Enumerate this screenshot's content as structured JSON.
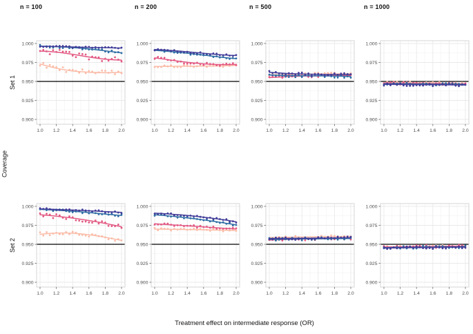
{
  "figure": {
    "xlabel": "Treatment effect on intermediate response (OR)",
    "ylabel": "Coverage"
  },
  "chart_data": {
    "type": "scatter",
    "title": "",
    "xlabel": "Treatment effect on intermediate response (OR)",
    "ylabel": "Coverage",
    "facet_col_labels": [
      "n = 100",
      "n = 200",
      "n = 500",
      "n = 1000"
    ],
    "facet_row_labels": [
      "Set 1",
      "Set 2"
    ],
    "x_ticks": [
      1.0,
      1.2,
      1.4,
      1.6,
      1.8,
      2.0
    ],
    "x_tick_labels": [
      "1.0",
      "1.2",
      "1.4",
      "1.6",
      "1.8",
      "2.0"
    ],
    "x_minor_ticks": [
      1.1,
      1.3,
      1.5,
      1.7,
      1.9
    ],
    "y_ticks": [
      1.0,
      0.975,
      0.95,
      0.925,
      0.9
    ],
    "y_tick_labels": [
      "1.000",
      "0.975",
      "0.950",
      "0.925",
      "0.900"
    ],
    "y_minor_ticks": [
      0.9875,
      0.9625,
      0.9375,
      0.9125
    ],
    "xlim": [
      1.0,
      2.0
    ],
    "ylim": [
      0.9,
      1.0
    ],
    "grid": true,
    "legend": "none",
    "reference_line_y": 0.95,
    "reference_line_color": "#000000",
    "panel_border_color": "#d4d4d4",
    "major_grid_color": "#e9e9e9",
    "minor_grid_color": "#f4f4f4",
    "series_colors": {
      "series-purple": "#423d99",
      "series-blue": "#2e6da4",
      "series-pink": "#e35983",
      "series-salmon": "#fbbca8"
    },
    "trend_x": [
      1.0,
      1.1,
      1.2,
      1.3,
      1.4,
      1.5,
      1.6,
      1.7,
      1.8,
      1.9,
      2.0
    ],
    "n_scatter_points": 26,
    "facets": [
      {
        "row": "Set 1",
        "col": "n = 100",
        "series": [
          {
            "name": "series-salmon",
            "color": "#fbbca8",
            "sd": 0.0035,
            "trend": [
              0.973,
              0.97,
              0.9674,
              0.9653,
              0.9638,
              0.9628,
              0.9621,
              0.9617,
              0.9615,
              0.9616,
              0.962
            ]
          },
          {
            "name": "series-pink",
            "color": "#e35983",
            "sd": 0.0035,
            "trend": [
              0.99,
              0.9895,
              0.9886,
              0.9873,
              0.9857,
              0.984,
              0.9822,
              0.9806,
              0.9793,
              0.9785,
              0.9781
            ]
          },
          {
            "name": "series-blue",
            "color": "#2e6da4",
            "sd": 0.0016,
            "trend": [
              0.9965,
              0.9962,
              0.9958,
              0.9953,
              0.9946,
              0.9938,
              0.9928,
              0.9916,
              0.9903,
              0.989,
              0.9876
            ]
          },
          {
            "name": "series-purple",
            "color": "#423d99",
            "sd": 0.0013,
            "trend": [
              0.9963,
              0.9961,
              0.9959,
              0.9957,
              0.9954,
              0.9951,
              0.9948,
              0.9946,
              0.9944,
              0.9942,
              0.994
            ]
          }
        ]
      },
      {
        "row": "Set 1",
        "col": "n = 200",
        "series": [
          {
            "name": "series-salmon",
            "color": "#fbbca8",
            "sd": 0.0016,
            "trend": [
              0.9698,
              0.9698,
              0.9699,
              0.97,
              0.97,
              0.9701,
              0.9702,
              0.9703,
              0.9705,
              0.9707,
              0.971
            ]
          },
          {
            "name": "series-pink",
            "color": "#e35983",
            "sd": 0.0022,
            "trend": [
              0.981,
              0.9796,
              0.9781,
              0.9766,
              0.9752,
              0.9741,
              0.9732,
              0.9726,
              0.9723,
              0.9722,
              0.9724
            ]
          },
          {
            "name": "series-blue",
            "color": "#2e6da4",
            "sd": 0.0015,
            "trend": [
              0.991,
              0.9902,
              0.9893,
              0.9883,
              0.9872,
              0.986,
              0.9847,
              0.9834,
              0.9821,
              0.981,
              0.98
            ]
          },
          {
            "name": "series-purple",
            "color": "#423d99",
            "sd": 0.0013,
            "trend": [
              0.9921,
              0.9915,
              0.9908,
              0.99,
              0.9891,
              0.9881,
              0.9871,
              0.9861,
              0.9852,
              0.9846,
              0.9843
            ]
          }
        ]
      },
      {
        "row": "Set 1",
        "col": "n = 500",
        "series": [
          {
            "name": "series-salmon",
            "color": "#fbbca8",
            "sd": 0.002,
            "trend": [
              0.9585,
              0.9588,
              0.959,
              0.9592,
              0.9594,
              0.9596,
              0.9597,
              0.9598,
              0.9599,
              0.96,
              0.96
            ]
          },
          {
            "name": "series-pink",
            "color": "#e35983",
            "sd": 0.002,
            "trend": [
              0.955,
              0.9557,
              0.9562,
              0.9567,
              0.957,
              0.9572,
              0.9574,
              0.9576,
              0.9577,
              0.9578,
              0.9579
            ]
          },
          {
            "name": "series-blue",
            "color": "#2e6da4",
            "sd": 0.002,
            "trend": [
              0.9585,
              0.9581,
              0.9578,
              0.9576,
              0.9575,
              0.9574,
              0.9573,
              0.9572,
              0.957,
              0.9568,
              0.9565
            ]
          },
          {
            "name": "series-purple",
            "color": "#423d99",
            "sd": 0.002,
            "trend": [
              0.962,
              0.9612,
              0.9606,
              0.9601,
              0.9598,
              0.9595,
              0.9593,
              0.9592,
              0.9591,
              0.959,
              0.959
            ]
          }
        ]
      },
      {
        "row": "Set 1",
        "col": "n = 1000",
        "series": [
          {
            "name": "series-salmon",
            "color": "#fbbca8",
            "sd": 0.0018,
            "trend": [
              0.9484,
              0.9483,
              0.9482,
              0.9481,
              0.948,
              0.9479,
              0.9478,
              0.9477,
              0.9475,
              0.9473,
              0.9471
            ]
          },
          {
            "name": "series-pink",
            "color": "#e35983",
            "sd": 0.0018,
            "trend": [
              0.9478,
              0.9477,
              0.9476,
              0.9475,
              0.9474,
              0.9473,
              0.9472,
              0.9471,
              0.947,
              0.9468,
              0.9466
            ]
          },
          {
            "name": "series-blue",
            "color": "#2e6da4",
            "sd": 0.0018,
            "trend": [
              0.947,
              0.9469,
              0.9468,
              0.9467,
              0.9466,
              0.9465,
              0.9464,
              0.9463,
              0.9462,
              0.9461,
              0.946
            ]
          },
          {
            "name": "series-purple",
            "color": "#423d99",
            "sd": 0.0018,
            "trend": [
              0.9462,
              0.9461,
              0.946,
              0.9459,
              0.9458,
              0.9457,
              0.9457,
              0.9456,
              0.9455,
              0.9454,
              0.9453
            ]
          }
        ]
      },
      {
        "row": "Set 2",
        "col": "n = 100",
        "series": [
          {
            "name": "series-salmon",
            "color": "#fbbca8",
            "sd": 0.003,
            "trend": [
              0.9632,
              0.9642,
              0.9648,
              0.9649,
              0.9645,
              0.9637,
              0.9625,
              0.961,
              0.9592,
              0.9572,
              0.9551
            ]
          },
          {
            "name": "series-pink",
            "color": "#e35983",
            "sd": 0.003,
            "trend": [
              0.989,
              0.9881,
              0.987,
              0.9858,
              0.9845,
              0.983,
              0.9813,
              0.9795,
              0.9775,
              0.9753,
              0.9731
            ]
          },
          {
            "name": "series-blue",
            "color": "#2e6da4",
            "sd": 0.0016,
            "trend": [
              0.996,
              0.9955,
              0.9949,
              0.9943,
              0.9935,
              0.9927,
              0.9918,
              0.9908,
              0.9898,
              0.9889,
              0.9879
            ]
          },
          {
            "name": "series-purple",
            "color": "#423d99",
            "sd": 0.0013,
            "trend": [
              0.9966,
              0.9963,
              0.9959,
              0.9955,
              0.9951,
              0.9946,
              0.9941,
              0.9936,
              0.9931,
              0.9926,
              0.9921
            ]
          }
        ]
      },
      {
        "row": "Set 2",
        "col": "n = 200",
        "series": [
          {
            "name": "series-salmon",
            "color": "#fbbca8",
            "sd": 0.0018,
            "trend": [
              0.97,
              0.9699,
              0.9697,
              0.9696,
              0.9694,
              0.9693,
              0.9691,
              0.9689,
              0.9687,
              0.9684,
              0.9681
            ]
          },
          {
            "name": "series-pink",
            "color": "#e35983",
            "sd": 0.0018,
            "trend": [
              0.977,
              0.9764,
              0.9757,
              0.975,
              0.9743,
              0.9736,
              0.9729,
              0.9722,
              0.9715,
              0.9708,
              0.9701
            ]
          },
          {
            "name": "series-blue",
            "color": "#2e6da4",
            "sd": 0.0015,
            "trend": [
              0.989,
              0.9881,
              0.9871,
              0.986,
              0.9848,
              0.9835,
              0.9821,
              0.9806,
              0.979,
              0.9773,
              0.9756
            ]
          },
          {
            "name": "series-purple",
            "color": "#423d99",
            "sd": 0.0013,
            "trend": [
              0.991,
              0.9904,
              0.9897,
              0.9889,
              0.988,
              0.9869,
              0.9857,
              0.9844,
              0.983,
              0.9815,
              0.9795
            ]
          }
        ]
      },
      {
        "row": "Set 2",
        "col": "n = 500",
        "series": [
          {
            "name": "series-salmon",
            "color": "#fbbca8",
            "sd": 0.0018,
            "trend": [
              0.959,
              0.9591,
              0.9593,
              0.9595,
              0.9597,
              0.9598,
              0.96,
              0.9601,
              0.9602,
              0.9603,
              0.9604
            ]
          },
          {
            "name": "series-pink",
            "color": "#e35983",
            "sd": 0.002,
            "trend": [
              0.9556,
              0.956,
              0.9563,
              0.9566,
              0.9569,
              0.9571,
              0.9573,
              0.9575,
              0.9577,
              0.9578,
              0.958
            ]
          },
          {
            "name": "series-blue",
            "color": "#2e6da4",
            "sd": 0.002,
            "trend": [
              0.9565,
              0.9566,
              0.9568,
              0.9569,
              0.957,
              0.9571,
              0.9572,
              0.9573,
              0.9574,
              0.9575,
              0.9576
            ]
          },
          {
            "name": "series-purple",
            "color": "#423d99",
            "sd": 0.002,
            "trend": [
              0.9576,
              0.9577,
              0.9578,
              0.9579,
              0.958,
              0.9581,
              0.9582,
              0.9583,
              0.9584,
              0.9585,
              0.9586
            ]
          }
        ]
      },
      {
        "row": "Set 2",
        "col": "n = 1000",
        "series": [
          {
            "name": "series-salmon",
            "color": "#fbbca8",
            "sd": 0.0018,
            "trend": [
              0.9462,
              0.9464,
              0.9465,
              0.9467,
              0.9468,
              0.947,
              0.9471,
              0.9472,
              0.9473,
              0.9474,
              0.9475
            ]
          },
          {
            "name": "series-pink",
            "color": "#e35983",
            "sd": 0.002,
            "trend": [
              0.9465,
              0.9466,
              0.9468,
              0.9469,
              0.947,
              0.9471,
              0.9472,
              0.9473,
              0.9474,
              0.9475,
              0.9476
            ]
          },
          {
            "name": "series-blue",
            "color": "#2e6da4",
            "sd": 0.0018,
            "trend": [
              0.9456,
              0.9457,
              0.9458,
              0.9459,
              0.9461,
              0.9462,
              0.9463,
              0.9464,
              0.9465,
              0.9466,
              0.9467
            ]
          },
          {
            "name": "series-purple",
            "color": "#423d99",
            "sd": 0.0018,
            "trend": [
              0.945,
              0.9452,
              0.9453,
              0.9455,
              0.9456,
              0.9457,
              0.9458,
              0.946,
              0.9461,
              0.9462,
              0.9463
            ]
          }
        ]
      }
    ]
  }
}
